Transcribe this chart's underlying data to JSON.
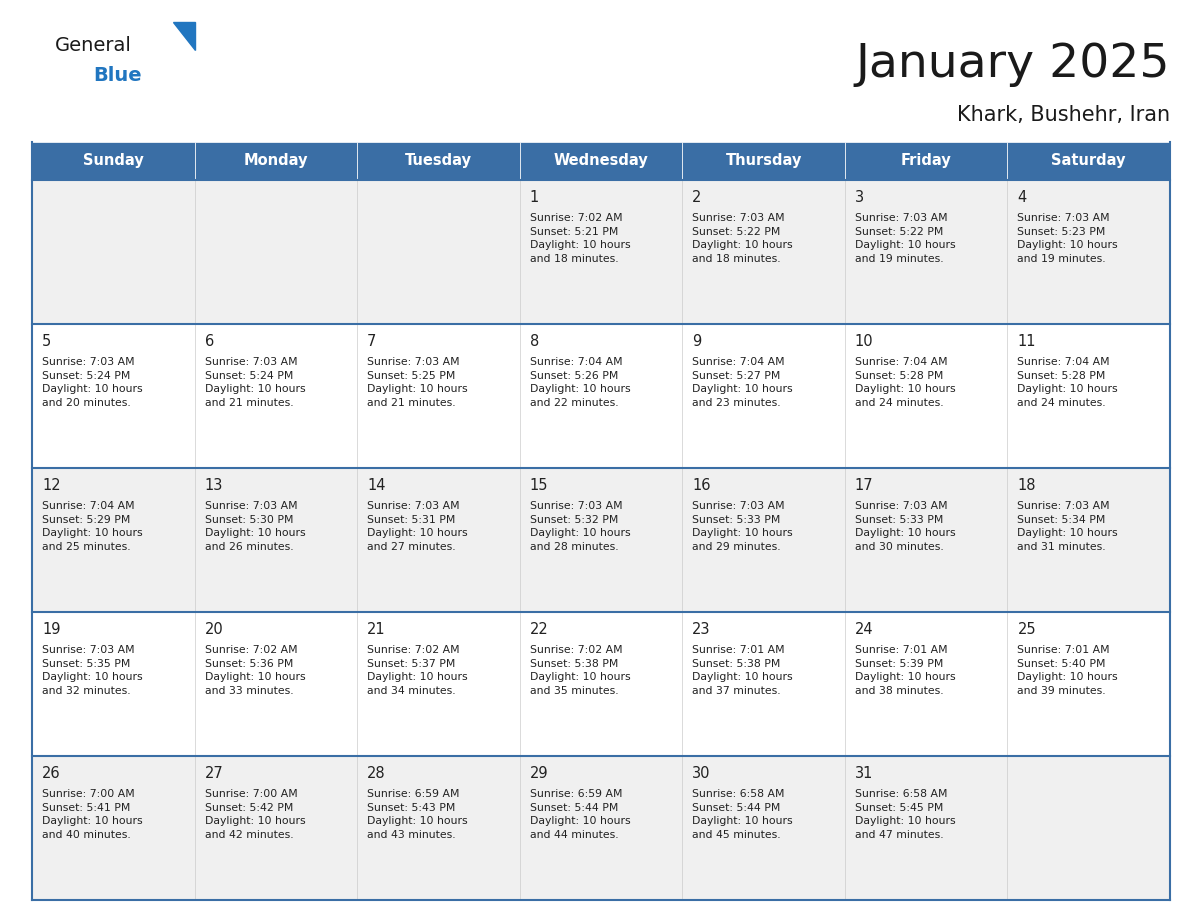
{
  "title": "January 2025",
  "subtitle": "Khark, Bushehr, Iran",
  "header_color": "#3a6ea5",
  "header_text_color": "#FFFFFF",
  "cell_bg_white": "#FFFFFF",
  "cell_bg_gray": "#f0f0f0",
  "border_color": "#3a6ea5",
  "row_line_color": "#3a6ea5",
  "text_color": "#222222",
  "day_names": [
    "Sunday",
    "Monday",
    "Tuesday",
    "Wednesday",
    "Thursday",
    "Friday",
    "Saturday"
  ],
  "weeks": [
    [
      {
        "day": "",
        "text": ""
      },
      {
        "day": "",
        "text": ""
      },
      {
        "day": "",
        "text": ""
      },
      {
        "day": "1",
        "text": "Sunrise: 7:02 AM\nSunset: 5:21 PM\nDaylight: 10 hours\nand 18 minutes."
      },
      {
        "day": "2",
        "text": "Sunrise: 7:03 AM\nSunset: 5:22 PM\nDaylight: 10 hours\nand 18 minutes."
      },
      {
        "day": "3",
        "text": "Sunrise: 7:03 AM\nSunset: 5:22 PM\nDaylight: 10 hours\nand 19 minutes."
      },
      {
        "day": "4",
        "text": "Sunrise: 7:03 AM\nSunset: 5:23 PM\nDaylight: 10 hours\nand 19 minutes."
      }
    ],
    [
      {
        "day": "5",
        "text": "Sunrise: 7:03 AM\nSunset: 5:24 PM\nDaylight: 10 hours\nand 20 minutes."
      },
      {
        "day": "6",
        "text": "Sunrise: 7:03 AM\nSunset: 5:24 PM\nDaylight: 10 hours\nand 21 minutes."
      },
      {
        "day": "7",
        "text": "Sunrise: 7:03 AM\nSunset: 5:25 PM\nDaylight: 10 hours\nand 21 minutes."
      },
      {
        "day": "8",
        "text": "Sunrise: 7:04 AM\nSunset: 5:26 PM\nDaylight: 10 hours\nand 22 minutes."
      },
      {
        "day": "9",
        "text": "Sunrise: 7:04 AM\nSunset: 5:27 PM\nDaylight: 10 hours\nand 23 minutes."
      },
      {
        "day": "10",
        "text": "Sunrise: 7:04 AM\nSunset: 5:28 PM\nDaylight: 10 hours\nand 24 minutes."
      },
      {
        "day": "11",
        "text": "Sunrise: 7:04 AM\nSunset: 5:28 PM\nDaylight: 10 hours\nand 24 minutes."
      }
    ],
    [
      {
        "day": "12",
        "text": "Sunrise: 7:04 AM\nSunset: 5:29 PM\nDaylight: 10 hours\nand 25 minutes."
      },
      {
        "day": "13",
        "text": "Sunrise: 7:03 AM\nSunset: 5:30 PM\nDaylight: 10 hours\nand 26 minutes."
      },
      {
        "day": "14",
        "text": "Sunrise: 7:03 AM\nSunset: 5:31 PM\nDaylight: 10 hours\nand 27 minutes."
      },
      {
        "day": "15",
        "text": "Sunrise: 7:03 AM\nSunset: 5:32 PM\nDaylight: 10 hours\nand 28 minutes."
      },
      {
        "day": "16",
        "text": "Sunrise: 7:03 AM\nSunset: 5:33 PM\nDaylight: 10 hours\nand 29 minutes."
      },
      {
        "day": "17",
        "text": "Sunrise: 7:03 AM\nSunset: 5:33 PM\nDaylight: 10 hours\nand 30 minutes."
      },
      {
        "day": "18",
        "text": "Sunrise: 7:03 AM\nSunset: 5:34 PM\nDaylight: 10 hours\nand 31 minutes."
      }
    ],
    [
      {
        "day": "19",
        "text": "Sunrise: 7:03 AM\nSunset: 5:35 PM\nDaylight: 10 hours\nand 32 minutes."
      },
      {
        "day": "20",
        "text": "Sunrise: 7:02 AM\nSunset: 5:36 PM\nDaylight: 10 hours\nand 33 minutes."
      },
      {
        "day": "21",
        "text": "Sunrise: 7:02 AM\nSunset: 5:37 PM\nDaylight: 10 hours\nand 34 minutes."
      },
      {
        "day": "22",
        "text": "Sunrise: 7:02 AM\nSunset: 5:38 PM\nDaylight: 10 hours\nand 35 minutes."
      },
      {
        "day": "23",
        "text": "Sunrise: 7:01 AM\nSunset: 5:38 PM\nDaylight: 10 hours\nand 37 minutes."
      },
      {
        "day": "24",
        "text": "Sunrise: 7:01 AM\nSunset: 5:39 PM\nDaylight: 10 hours\nand 38 minutes."
      },
      {
        "day": "25",
        "text": "Sunrise: 7:01 AM\nSunset: 5:40 PM\nDaylight: 10 hours\nand 39 minutes."
      }
    ],
    [
      {
        "day": "26",
        "text": "Sunrise: 7:00 AM\nSunset: 5:41 PM\nDaylight: 10 hours\nand 40 minutes."
      },
      {
        "day": "27",
        "text": "Sunrise: 7:00 AM\nSunset: 5:42 PM\nDaylight: 10 hours\nand 42 minutes."
      },
      {
        "day": "28",
        "text": "Sunrise: 6:59 AM\nSunset: 5:43 PM\nDaylight: 10 hours\nand 43 minutes."
      },
      {
        "day": "29",
        "text": "Sunrise: 6:59 AM\nSunset: 5:44 PM\nDaylight: 10 hours\nand 44 minutes."
      },
      {
        "day": "30",
        "text": "Sunrise: 6:58 AM\nSunset: 5:44 PM\nDaylight: 10 hours\nand 45 minutes."
      },
      {
        "day": "31",
        "text": "Sunrise: 6:58 AM\nSunset: 5:45 PM\nDaylight: 10 hours\nand 47 minutes."
      },
      {
        "day": "",
        "text": ""
      }
    ]
  ],
  "logo_general_color": "#1a1a1a",
  "logo_blue_color": "#2176c0",
  "logo_triangle_color": "#2176c0",
  "fig_width": 11.88,
  "fig_height": 9.18,
  "dpi": 100
}
